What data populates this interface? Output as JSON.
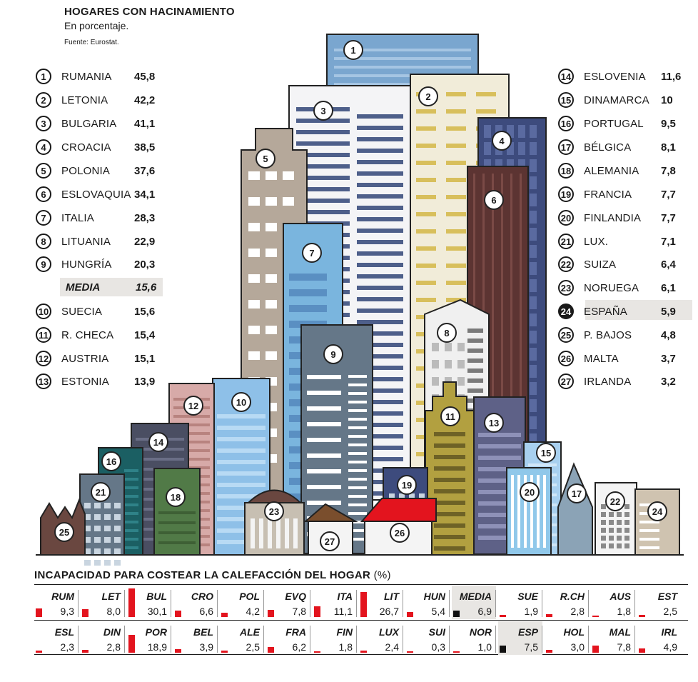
{
  "chart_data": [
    {
      "type": "bar",
      "title": "HOGARES CON HACINAMIENTO",
      "subtitle": "En porcentaje.",
      "source": "Fuente: Eurostat.",
      "series": [
        {
          "rank": "1",
          "country": "RUMANIA",
          "value": "45,8"
        },
        {
          "rank": "2",
          "country": "LETONIA",
          "value": "42,2"
        },
        {
          "rank": "3",
          "country": "BULGARIA",
          "value": "41,1"
        },
        {
          "rank": "4",
          "country": "CROACIA",
          "value": "38,5"
        },
        {
          "rank": "5",
          "country": "POLONIA",
          "value": "37,6"
        },
        {
          "rank": "6",
          "country": "ESLOVAQUIA",
          "value": "34,1"
        },
        {
          "rank": "7",
          "country": "ITALIA",
          "value": "28,3"
        },
        {
          "rank": "8",
          "country": "LITUANIA",
          "value": "22,9"
        },
        {
          "rank": "9",
          "country": "HUNGRÍA",
          "value": "20,3"
        },
        {
          "rank": "10",
          "country": "SUECIA",
          "value": "15,6"
        },
        {
          "rank": "11",
          "country": "R. CHECA",
          "value": "15,4"
        },
        {
          "rank": "12",
          "country": "AUSTRIA",
          "value": "15,1"
        },
        {
          "rank": "13",
          "country": "ESTONIA",
          "value": "13,9"
        },
        {
          "rank": "14",
          "country": "ESLOVENIA",
          "value": "11,6"
        },
        {
          "rank": "15",
          "country": "DINAMARCA",
          "value": "10"
        },
        {
          "rank": "16",
          "country": "PORTUGAL",
          "value": "9,5"
        },
        {
          "rank": "17",
          "country": "BÉLGICA",
          "value": "8,1"
        },
        {
          "rank": "18",
          "country": "ALEMANIA",
          "value": "7,8"
        },
        {
          "rank": "19",
          "country": "FRANCIA",
          "value": "7,7"
        },
        {
          "rank": "20",
          "country": "FINLANDIA",
          "value": "7,7"
        },
        {
          "rank": "21",
          "country": "LUX.",
          "value": "7,1"
        },
        {
          "rank": "22",
          "country": "SUIZA",
          "value": "6,4"
        },
        {
          "rank": "23",
          "country": "NORUEGA",
          "value": "6,1"
        },
        {
          "rank": "24",
          "country": "ESPAÑA",
          "value": "5,9"
        },
        {
          "rank": "25",
          "country": "P. BAJOS",
          "value": "4,8"
        },
        {
          "rank": "26",
          "country": "MALTA",
          "value": "3,7"
        },
        {
          "rank": "27",
          "country": "IRLANDA",
          "value": "3,2"
        }
      ],
      "media": {
        "label": "MEDIA",
        "value": "15,6"
      },
      "highlight_rank": "24"
    },
    {
      "type": "table",
      "title": "INCAPACIDAD PARA COSTEAR LA CALEFACCIÓN DEL HOGAR",
      "unit": "(%)",
      "scale_max": 30.1,
      "rows": [
        [
          {
            "code": "RUM",
            "value": "9,3"
          },
          {
            "code": "LET",
            "value": "8,0"
          },
          {
            "code": "BUL",
            "value": "30,1"
          },
          {
            "code": "CRO",
            "value": "6,6"
          },
          {
            "code": "POL",
            "value": "4,2"
          },
          {
            "code": "EVQ",
            "value": "7,8"
          },
          {
            "code": "ITA",
            "value": "11,1"
          },
          {
            "code": "LIT",
            "value": "26,7"
          },
          {
            "code": "HUN",
            "value": "5,4"
          },
          {
            "code": "MEDIA",
            "value": "6,9",
            "highlight": true
          },
          {
            "code": "SUE",
            "value": "1,9"
          },
          {
            "code": "R.CH",
            "value": "2,8"
          },
          {
            "code": "AUS",
            "value": "1,8"
          },
          {
            "code": "EST",
            "value": "2,5"
          }
        ],
        [
          {
            "code": "ESL",
            "value": "2,3"
          },
          {
            "code": "DIN",
            "value": "2,8"
          },
          {
            "code": "POR",
            "value": "18,9"
          },
          {
            "code": "BEL",
            "value": "3,9"
          },
          {
            "code": "ALE",
            "value": "2,5"
          },
          {
            "code": "FRA",
            "value": "6,2"
          },
          {
            "code": "FIN",
            "value": "1,8"
          },
          {
            "code": "LUX",
            "value": "2,4"
          },
          {
            "code": "SUI",
            "value": "0,3"
          },
          {
            "code": "NOR",
            "value": "1,0"
          },
          {
            "code": "ESP",
            "value": "7,5",
            "highlight": true
          },
          {
            "code": "HOL",
            "value": "3,0"
          },
          {
            "code": "MAL",
            "value": "7,8"
          },
          {
            "code": "IRL",
            "value": "4,9"
          }
        ]
      ]
    }
  ],
  "colors": {
    "ink": "#1a1a1a",
    "accent_red": "#e3141e",
    "highlight_gray": "#e8e6e3"
  }
}
